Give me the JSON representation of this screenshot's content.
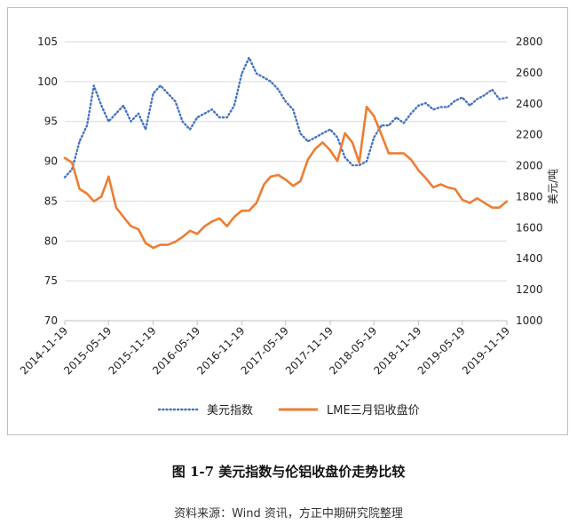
{
  "caption": "图 1-7 美元指数与伦铝收盘价走势比较",
  "source": "资料来源：Wind 资讯，方正中期研究院整理",
  "chart_data": {
    "type": "line",
    "title": "",
    "xlabel": "",
    "ylabel_left": "",
    "ylabel_right": "美元/吨",
    "xlim": [
      "2014-11-19",
      "2019-11-19"
    ],
    "x_ticks": [
      "2014-11-19",
      "2015-05-19",
      "2015-11-19",
      "2016-05-19",
      "2016-11-19",
      "2017-05-19",
      "2017-11-19",
      "2018-05-19",
      "2018-11-19",
      "2019-05-19",
      "2019-11-19"
    ],
    "ylim_left": [
      70,
      105
    ],
    "y_ticks_left": [
      70,
      75,
      80,
      85,
      90,
      95,
      100,
      105
    ],
    "ylim_right": [
      1000,
      2800
    ],
    "y_ticks_right": [
      1000,
      1200,
      1400,
      1600,
      1800,
      2000,
      2200,
      2400,
      2600,
      2800
    ],
    "grid": true,
    "legend_position": "bottom",
    "series": [
      {
        "name": "美元指数",
        "axis": "left",
        "style": "dotted",
        "color": "#4472c4",
        "x": [
          "2014-11-19",
          "2014-12-19",
          "2015-01-19",
          "2015-02-19",
          "2015-03-19",
          "2015-04-19",
          "2015-05-19",
          "2015-06-19",
          "2015-07-19",
          "2015-08-19",
          "2015-09-19",
          "2015-10-19",
          "2015-11-19",
          "2015-12-19",
          "2016-01-19",
          "2016-02-19",
          "2016-03-19",
          "2016-04-19",
          "2016-05-19",
          "2016-06-19",
          "2016-07-19",
          "2016-08-19",
          "2016-09-19",
          "2016-10-19",
          "2016-11-19",
          "2016-12-19",
          "2017-01-19",
          "2017-02-19",
          "2017-03-19",
          "2017-04-19",
          "2017-05-19",
          "2017-06-19",
          "2017-07-19",
          "2017-08-19",
          "2017-09-19",
          "2017-10-19",
          "2017-11-19",
          "2017-12-19",
          "2018-01-19",
          "2018-02-19",
          "2018-03-19",
          "2018-04-19",
          "2018-05-19",
          "2018-06-19",
          "2018-07-19",
          "2018-08-19",
          "2018-09-19",
          "2018-10-19",
          "2018-11-19",
          "2018-12-19",
          "2019-01-19",
          "2019-02-19",
          "2019-03-19",
          "2019-04-19",
          "2019-05-19",
          "2019-06-19",
          "2019-07-19",
          "2019-08-19",
          "2019-09-19",
          "2019-10-19",
          "2019-11-19"
        ],
        "values": [
          88.0,
          89.0,
          92.5,
          94.5,
          99.5,
          97.0,
          95.0,
          96.0,
          97.0,
          95.0,
          96.0,
          94.0,
          98.5,
          99.5,
          98.5,
          97.5,
          95.0,
          94.0,
          95.5,
          96.0,
          96.5,
          95.5,
          95.5,
          97.0,
          101.0,
          103.0,
          101.0,
          100.5,
          100.0,
          99.0,
          97.5,
          96.5,
          93.5,
          92.5,
          93.0,
          93.5,
          94.0,
          93.0,
          90.5,
          89.5,
          89.5,
          90.0,
          93.0,
          94.5,
          94.5,
          95.5,
          94.8,
          96.0,
          97.0,
          97.3,
          96.5,
          96.8,
          96.8,
          97.6,
          98.0,
          97.0,
          97.8,
          98.3,
          99.0,
          97.8,
          98.0
        ]
      },
      {
        "name": "LME三月铝收盘价",
        "axis": "right",
        "style": "solid",
        "color": "#ed7d31",
        "x": [
          "2014-11-19",
          "2014-12-19",
          "2015-01-19",
          "2015-02-19",
          "2015-03-19",
          "2015-04-19",
          "2015-05-19",
          "2015-06-19",
          "2015-07-19",
          "2015-08-19",
          "2015-09-19",
          "2015-10-19",
          "2015-11-19",
          "2015-12-19",
          "2016-01-19",
          "2016-02-19",
          "2016-03-19",
          "2016-04-19",
          "2016-05-19",
          "2016-06-19",
          "2016-07-19",
          "2016-08-19",
          "2016-09-19",
          "2016-10-19",
          "2016-11-19",
          "2016-12-19",
          "2017-01-19",
          "2017-02-19",
          "2017-03-19",
          "2017-04-19",
          "2017-05-19",
          "2017-06-19",
          "2017-07-19",
          "2017-08-19",
          "2017-09-19",
          "2017-10-19",
          "2017-11-19",
          "2017-12-19",
          "2018-01-19",
          "2018-02-19",
          "2018-03-19",
          "2018-04-19",
          "2018-05-19",
          "2018-06-19",
          "2018-07-19",
          "2018-08-19",
          "2018-09-19",
          "2018-10-19",
          "2018-11-19",
          "2018-12-19",
          "2019-01-19",
          "2019-02-19",
          "2019-03-19",
          "2019-04-19",
          "2019-05-19",
          "2019-06-19",
          "2019-07-19",
          "2019-08-19",
          "2019-09-19",
          "2019-10-19",
          "2019-11-19"
        ],
        "values": [
          2050,
          2020,
          1850,
          1820,
          1770,
          1800,
          1930,
          1730,
          1670,
          1610,
          1590,
          1500,
          1470,
          1490,
          1490,
          1510,
          1540,
          1580,
          1560,
          1610,
          1640,
          1660,
          1610,
          1670,
          1710,
          1710,
          1760,
          1880,
          1930,
          1940,
          1910,
          1870,
          1900,
          2040,
          2110,
          2150,
          2100,
          2030,
          2210,
          2150,
          2020,
          2380,
          2320,
          2200,
          2080,
          2080,
          2080,
          2040,
          1970,
          1920,
          1860,
          1880,
          1860,
          1850,
          1780,
          1760,
          1790,
          1760,
          1730,
          1730,
          1770
        ]
      }
    ]
  }
}
